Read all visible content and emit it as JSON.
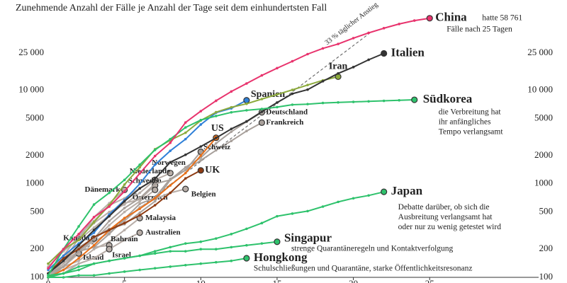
{
  "chart_data": {
    "type": "line",
    "title": "Zunehmende Anzahl der Fälle je Anzahl der Tage seit dem einhundertsten Fall",
    "log_y": true,
    "grid": false,
    "x": [
      0,
      1,
      2,
      3,
      4,
      5,
      6,
      7,
      8,
      9,
      10,
      11,
      12,
      13,
      14,
      15,
      16,
      17,
      18,
      19,
      20,
      21,
      22,
      23,
      24,
      25
    ],
    "xlim": [
      0,
      34
    ],
    "xticks": [
      0,
      5,
      10,
      15,
      20,
      25
    ],
    "ylim": [
      100,
      65000
    ],
    "yticks": [
      100,
      200,
      500,
      1000,
      2000,
      5000,
      {
        "value": 10000,
        "label": "10 000"
      },
      {
        "value": 25000,
        "label": "25 000"
      }
    ],
    "series": [
      {
        "name": "33 % täglicher Anstieg",
        "color": "#555555",
        "dash": true,
        "values": [
          100,
          133,
          177,
          235,
          313,
          416,
          554,
          737,
          980,
          1303,
          1733,
          2305,
          3066,
          4078,
          5424,
          7214,
          9595,
          12761,
          16972,
          22573,
          30022,
          39929,
          null,
          null,
          null,
          null
        ]
      },
      {
        "name": "Norwegen",
        "color": "#b8aea8",
        "values": [
          110,
          170,
          280,
          400,
          590,
          700,
          900,
          1100,
          1300,
          null,
          null,
          null,
          null,
          null,
          null,
          null,
          null,
          null,
          null,
          null,
          null,
          null,
          null,
          null,
          null,
          null
        ]
      },
      {
        "name": "Niederlande",
        "color": "#b8aea8",
        "values": [
          130,
          190,
          260,
          380,
          500,
          600,
          800,
          1100,
          null,
          null,
          null,
          null,
          null,
          null,
          null,
          null,
          null,
          null,
          null,
          null,
          null,
          null,
          null,
          null,
          null,
          null
        ]
      },
      {
        "name": "Schweden",
        "color": "#b8aea8",
        "values": [
          140,
          200,
          250,
          340,
          460,
          620,
          680,
          960,
          null,
          null,
          null,
          null,
          null,
          null,
          null,
          null,
          null,
          null,
          null,
          null,
          null,
          null,
          null,
          null,
          null,
          null
        ]
      },
      {
        "name": "Österreich",
        "color": "#b8aea8",
        "values": [
          100,
          130,
          180,
          250,
          360,
          500,
          650,
          860,
          null,
          null,
          null,
          null,
          null,
          null,
          null,
          null,
          null,
          null,
          null,
          null,
          null,
          null,
          null,
          null,
          null,
          null
        ]
      },
      {
        "name": "Dänemark",
        "color": "#b8aea8",
        "values": [
          100,
          150,
          260,
          440,
          620,
          860,
          null,
          null,
          null,
          null,
          null,
          null,
          null,
          null,
          null,
          null,
          null,
          null,
          null,
          null,
          null,
          null,
          null,
          null,
          null,
          null
        ]
      },
      {
        "name": "Belgien",
        "color": "#b8aea8",
        "values": [
          110,
          170,
          200,
          240,
          300,
          400,
          560,
          690,
          800,
          880,
          null,
          null,
          null,
          null,
          null,
          null,
          null,
          null,
          null,
          null,
          null,
          null,
          null,
          null,
          null,
          null
        ]
      },
      {
        "name": "Malaysia",
        "color": "#b8aea8",
        "values": [
          110,
          130,
          150,
          200,
          240,
          320,
          430,
          null,
          null,
          null,
          null,
          null,
          null,
          null,
          null,
          null,
          null,
          null,
          null,
          null,
          null,
          null,
          null,
          null,
          null,
          null
        ]
      },
      {
        "name": "Australien",
        "color": "#b8aea8",
        "values": [
          110,
          120,
          140,
          160,
          200,
          250,
          300,
          null,
          null,
          null,
          null,
          null,
          null,
          null,
          null,
          null,
          null,
          null,
          null,
          null,
          null,
          null,
          null,
          null,
          null,
          null
        ]
      },
      {
        "name": "Kanada",
        "color": "#b8aea8",
        "values": [
          100,
          140,
          190,
          260,
          null,
          null,
          null,
          null,
          null,
          null,
          null,
          null,
          null,
          null,
          null,
          null,
          null,
          null,
          null,
          null,
          null,
          null,
          null,
          null,
          null,
          null
        ]
      },
      {
        "name": "Bahrain",
        "color": "#b8aea8",
        "values": [
          110,
          150,
          190,
          210,
          220,
          null,
          null,
          null,
          null,
          null,
          null,
          null,
          null,
          null,
          null,
          null,
          null,
          null,
          null,
          null,
          null,
          null,
          null,
          null,
          null,
          null
        ]
      },
      {
        "name": "Island",
        "color": "#b8aea8",
        "values": [
          100,
          150,
          180,
          null,
          null,
          null,
          null,
          null,
          null,
          null,
          null,
          null,
          null,
          null,
          null,
          null,
          null,
          null,
          null,
          null,
          null,
          null,
          null,
          null,
          null,
          null
        ]
      },
      {
        "name": "Israel",
        "color": "#b8aea8",
        "values": [
          100,
          110,
          140,
          160,
          200,
          null,
          null,
          null,
          null,
          null,
          null,
          null,
          null,
          null,
          null,
          null,
          null,
          null,
          null,
          null,
          null,
          null,
          null,
          null,
          null,
          null
        ]
      },
      {
        "name": "Deutschland",
        "color": "#a8a09b",
        "values": [
          110,
          130,
          190,
          260,
          400,
          550,
          700,
          1000,
          1100,
          1500,
          1900,
          2700,
          3600,
          4600,
          5800,
          null,
          null,
          null,
          null,
          null,
          null,
          null,
          null,
          null,
          null,
          null
        ]
      },
      {
        "name": "Frankreich",
        "color": "#a8a09b",
        "values": [
          100,
          130,
          190,
          210,
          290,
          420,
          610,
          710,
          1130,
          1400,
          1780,
          2280,
          2870,
          3660,
          4500,
          null,
          null,
          null,
          null,
          null,
          null,
          null,
          null,
          null,
          null,
          null
        ]
      },
      {
        "name": "Schweiz",
        "color": "#a8a09b",
        "values": [
          110,
          150,
          210,
          260,
          330,
          370,
          490,
          650,
          1100,
          1400,
          2200,
          null,
          null,
          null,
          null,
          null,
          null,
          null,
          null,
          null,
          null,
          null,
          null,
          null,
          null,
          null
        ]
      },
      {
        "name": "US",
        "color": "#e8701a",
        "values": [
          100,
          120,
          160,
          220,
          320,
          430,
          540,
          700,
          960,
          1300,
          2000,
          3100,
          null,
          null,
          null,
          null,
          null,
          null,
          null,
          null,
          null,
          null,
          null,
          null,
          null,
          null
        ]
      },
      {
        "name": "UK",
        "color": "#8e3b12",
        "values": [
          110,
          160,
          200,
          270,
          320,
          380,
          460,
          590,
          800,
          1140,
          1390,
          null,
          null,
          null,
          null,
          null,
          null,
          null,
          null,
          null,
          null,
          null,
          null,
          null,
          null,
          null
        ]
      },
      {
        "name": "Spanien",
        "color": "#2f80d8",
        "values": [
          120,
          170,
          230,
          300,
          470,
          670,
          1000,
          1600,
          2250,
          3000,
          4300,
          5750,
          6400,
          7800,
          null,
          null,
          null,
          null,
          null,
          null,
          null,
          null,
          null,
          null,
          null,
          null
        ]
      },
      {
        "name": "Iran",
        "color": "#8caa3c",
        "values": [
          140,
          200,
          250,
          390,
          590,
          980,
          1500,
          2340,
          2920,
          3510,
          4750,
          5820,
          6570,
          7160,
          8040,
          9000,
          10080,
          11360,
          12730,
          13940,
          null,
          null,
          null,
          null,
          null,
          null
        ]
      },
      {
        "name": "Italien",
        "color": "#333333",
        "values": [
          110,
          150,
          220,
          320,
          450,
          650,
          890,
          1130,
          1700,
          2040,
          2500,
          3090,
          3860,
          4640,
          5880,
          7380,
          9170,
          10150,
          12460,
          15110,
          17660,
          21160,
          24750,
          null,
          null,
          null
        ]
      },
      {
        "name": "Südkorea",
        "color": "#2ec26c",
        "notes": [
          "die Verbreitung hat",
          "ihr anfängliches",
          "Tempo verlangsamt"
        ],
        "values": [
          105,
          200,
          350,
          600,
          800,
          1100,
          1600,
          2300,
          3000,
          4000,
          4800,
          5300,
          5800,
          6100,
          6300,
          6600,
          7000,
          7100,
          7300,
          7400,
          7500,
          7600,
          7700,
          7800,
          7900,
          null
        ]
      },
      {
        "name": "Japan",
        "color": "#2ec26c",
        "notes": [
          "Debatte darüber, ob sich die",
          "Ausbreitung verlangsamt hat",
          "oder nur zu wenig getestet wird"
        ],
        "values": [
          105,
          110,
          120,
          140,
          150,
          160,
          170,
          190,
          210,
          230,
          240,
          260,
          290,
          330,
          380,
          450,
          480,
          510,
          570,
          640,
          700,
          750,
          820,
          null,
          null,
          null
        ]
      },
      {
        "name": "Singapur",
        "color": "#2ec26c",
        "notes": [
          "strenge Quarantäneregeln und Kontaktverfolgung"
        ],
        "values": [
          100,
          110,
          130,
          140,
          150,
          160,
          170,
          180,
          190,
          190,
          200,
          200,
          210,
          220,
          230,
          240,
          null,
          null,
          null,
          null,
          null,
          null,
          null,
          null,
          null,
          null
        ]
      },
      {
        "name": "Hongkong",
        "color": "#2ec26c",
        "notes": [
          "Schulschließungen und Quarantäne, starke Öffentlichkeitsresonanz"
        ],
        "values": [
          100,
          100,
          105,
          105,
          110,
          115,
          120,
          125,
          130,
          135,
          140,
          145,
          150,
          160,
          null,
          null,
          null,
          null,
          null,
          null,
          null,
          null,
          null,
          null,
          null,
          null
        ]
      },
      {
        "name": "China",
        "color": "#e8336d",
        "notes": [
          "hatte 58 761",
          "Fälle nach 25 Tagen"
        ],
        "values": [
          125,
          200,
          290,
          440,
          570,
          830,
          1290,
          1980,
          2740,
          4520,
          5970,
          7710,
          9690,
          11800,
          14400,
          17200,
          20400,
          24300,
          28000,
          31200,
          36000,
          41000,
          46000,
          51000,
          55500,
          58761
        ]
      }
    ]
  }
}
